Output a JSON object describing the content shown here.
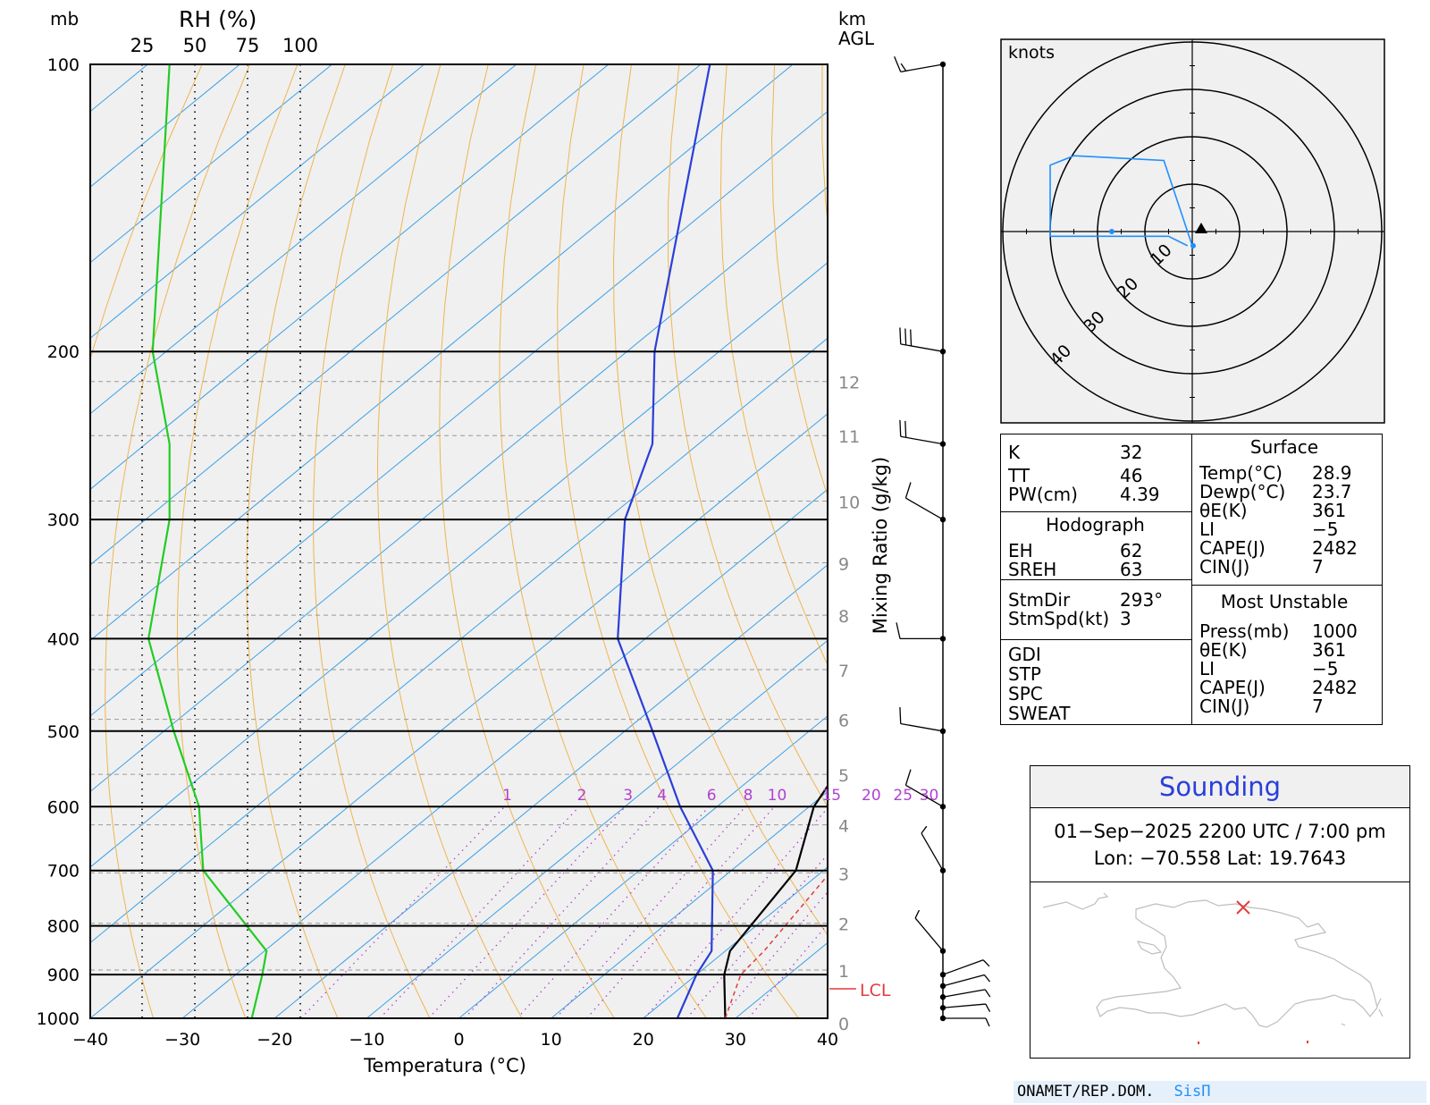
{
  "skewt": {
    "top_left_label": "mb",
    "rh_title": "RH (%)",
    "rh_ticks": [
      "25",
      "50",
      "75",
      "100"
    ],
    "km_label": "km",
    "agl_label": "AGL",
    "pressure_ticks": [
      "100",
      "200",
      "300",
      "400",
      "500",
      "600",
      "700",
      "800",
      "900",
      "1000"
    ],
    "temp_ticks": [
      "−40",
      "−30",
      "−20",
      "−10",
      "0",
      "10",
      "20",
      "30",
      "40"
    ],
    "xlabel": "Temperatura (°C)",
    "mixing_ratio_label": "Mixing Ratio (g/kg)",
    "mixing_ratio_ticks": [
      "1",
      "2",
      "3",
      "4",
      "6",
      "8",
      "10",
      "15",
      "20",
      "25",
      "30"
    ],
    "height_ticks": [
      "12",
      "11",
      "10",
      "9",
      "8",
      "7",
      "6",
      "5",
      "4",
      "3",
      "2",
      "1",
      "0"
    ],
    "lcl_label": "LCL"
  },
  "chart_data": {
    "type": "line",
    "xlabel": "Temperatura (°C)",
    "ylabel": "mb",
    "x_range": [
      -40,
      40
    ],
    "y_range_mb": [
      1000,
      100
    ],
    "y_scale": "log",
    "series": [
      {
        "name": "temperature",
        "color": "#000000",
        "points": [
          [
            28.9,
            1000
          ],
          [
            23,
            900
          ],
          [
            20.5,
            850
          ],
          [
            17,
            700
          ],
          [
            10.5,
            600
          ],
          [
            6,
            500
          ],
          [
            -1.5,
            400
          ],
          [
            -17,
            300
          ],
          [
            -30.5,
            250
          ],
          [
            -43,
            200
          ],
          [
            -74,
            100
          ]
        ]
      },
      {
        "name": "dewpoint",
        "color": "#2a3fd9",
        "points": [
          [
            23.7,
            1000
          ],
          [
            20,
            900
          ],
          [
            18.5,
            850
          ],
          [
            8,
            700
          ],
          [
            -4,
            600
          ],
          [
            -17,
            500
          ],
          [
            -33,
            400
          ],
          [
            -48,
            300
          ],
          [
            -55,
            250
          ],
          [
            -67,
            200
          ],
          [
            -99,
            100
          ]
        ]
      },
      {
        "name": "parcel",
        "color": "#e23b3b",
        "points": [
          [
            28.9,
            1000
          ],
          [
            24.8,
            900
          ],
          [
            24.2,
            850
          ],
          [
            20.9,
            700
          ],
          [
            18.2,
            600
          ],
          [
            14.6,
            500
          ],
          [
            9.2,
            400
          ],
          [
            -0.8,
            300
          ],
          [
            -10,
            250
          ],
          [
            -21,
            200
          ],
          [
            -52,
            110
          ]
        ]
      },
      {
        "name": "relative humidity",
        "color": "#22cc22",
        "points": [
          [
            77,
            1000
          ],
          [
            82,
            900
          ],
          [
            84,
            850
          ],
          [
            54,
            700
          ],
          [
            52,
            600
          ],
          [
            40,
            500
          ],
          [
            28,
            400
          ],
          [
            38,
            300
          ],
          [
            38,
            250
          ],
          [
            30,
            200
          ],
          [
            38,
            100
          ]
        ]
      }
    ]
  },
  "wind_barbs": [
    {
      "mb": 100,
      "dir": 260,
      "kt": 15
    },
    {
      "mb": 200,
      "dir": 280,
      "kt": 30
    },
    {
      "mb": 250,
      "dir": 280,
      "kt": 20
    },
    {
      "mb": 300,
      "dir": 300,
      "kt": 10
    },
    {
      "mb": 400,
      "dir": 270,
      "kt": 10
    },
    {
      "mb": 500,
      "dir": 280,
      "kt": 10
    },
    {
      "mb": 600,
      "dir": 300,
      "kt": 10
    },
    {
      "mb": 700,
      "dir": 330,
      "kt": 5
    },
    {
      "mb": 850,
      "dir": 320,
      "kt": 5
    },
    {
      "mb": 900,
      "dir": 70,
      "kt": 5
    },
    {
      "mb": 925,
      "dir": 75,
      "kt": 5
    },
    {
      "mb": 950,
      "dir": 80,
      "kt": 5
    },
    {
      "mb": 975,
      "dir": 85,
      "kt": 5
    },
    {
      "mb": 1000,
      "dir": 90,
      "kt": 5
    }
  ],
  "hodograph": {
    "unit_label": "knots",
    "ring_labels": [
      "10",
      "20",
      "30",
      "40"
    ],
    "trace_color": "#1e90ff",
    "trace_uv": [
      [
        0,
        -3
      ],
      [
        -6,
        15
      ],
      [
        -25,
        16
      ],
      [
        -30,
        14
      ],
      [
        -30,
        -1
      ],
      [
        -5,
        -1
      ],
      [
        -1,
        -3
      ]
    ]
  },
  "indices": {
    "k_label": "K",
    "k_value": "32",
    "tt_label": "TT",
    "tt_value": "46",
    "pw_label": "PW(cm)",
    "pw_value": "4.39",
    "hodo_header": "Hodograph",
    "eh_label": "EH",
    "eh_value": "62",
    "sreh_label": "SREH",
    "sreh_value": "63",
    "stmdir_label": "StmDir",
    "stmdir_value": "293°",
    "stmspd_label": "StmSpd(kt)",
    "stmspd_value": "3",
    "gdi_label": "GDI",
    "stp_label": "STP",
    "spc_label": "SPC",
    "sweat_label": "SWEAT"
  },
  "surface": {
    "header": "Surface",
    "rows": [
      {
        "label": "Temp(°C)",
        "value": "28.9"
      },
      {
        "label": "Dewp(°C)",
        "value": "23.7"
      },
      {
        "label": "θE(K)",
        "value": "361"
      },
      {
        "label": "LI",
        "value": "−5"
      },
      {
        "label": "CAPE(J)",
        "value": "2482"
      },
      {
        "label": "CIN(J)",
        "value": "7"
      }
    ]
  },
  "most_unstable": {
    "header": "Most Unstable",
    "rows": [
      {
        "label": "Press(mb)",
        "value": "1000"
      },
      {
        "label": "θE(K)",
        "value": "361"
      },
      {
        "label": "LI",
        "value": "−5"
      },
      {
        "label": "CAPE(J)",
        "value": "2482"
      },
      {
        "label": "CIN(J)",
        "value": "7"
      }
    ]
  },
  "info": {
    "title": "Sounding",
    "datetime": "01−Sep−2025 2200  UTC / 7:00 pm",
    "coords": "Lon:  −70.558     Lat: 19.7643",
    "marker_color": "#e23b3b"
  },
  "footer": {
    "org": "ONAMET/REP.DOM.",
    "brand": "SisΠ"
  }
}
